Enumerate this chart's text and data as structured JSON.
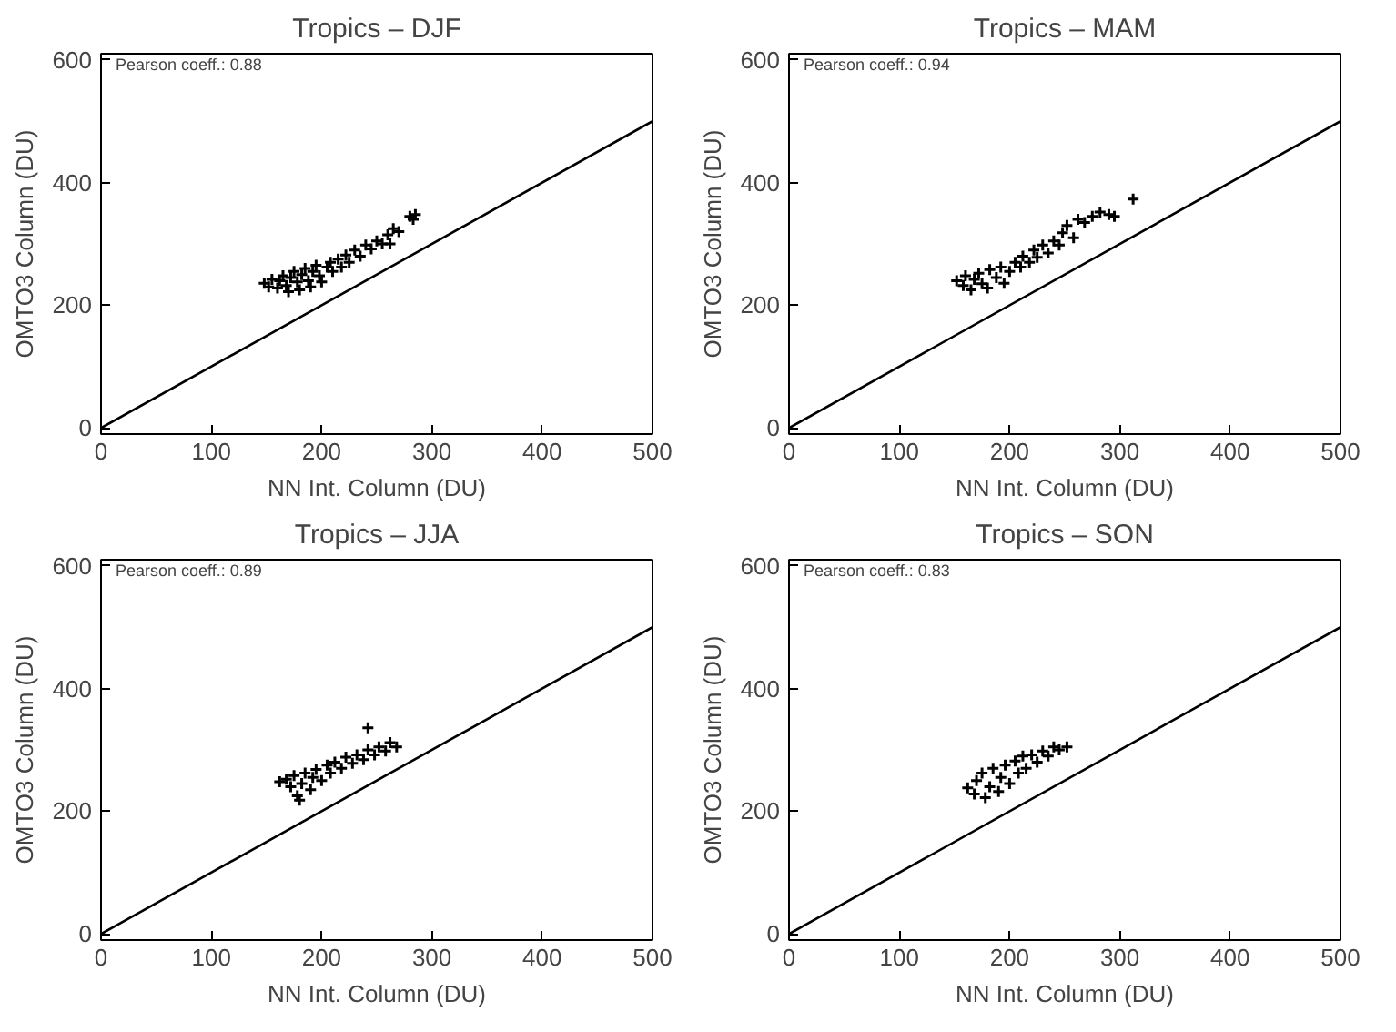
{
  "chart_data": [
    {
      "type": "scatter",
      "title": "Tropics – DJF",
      "xlabel": "NN Int. Column (DU)",
      "ylabel": "OMTO3 Column (DU)",
      "xlim": [
        0,
        500
      ],
      "ylim": [
        -10,
        610
      ],
      "xticks": [
        0,
        100,
        200,
        300,
        400,
        500
      ],
      "yticks": [
        0,
        200,
        400,
        600
      ],
      "marker": "cross",
      "grid": false,
      "annotations": [
        "Pearson coeff.: 0.88"
      ],
      "series": [
        {
          "color": "#000000",
          "x": [
            148,
            152,
            155,
            160,
            162,
            165,
            168,
            170,
            172,
            175,
            178,
            180,
            182,
            185,
            188,
            190,
            192,
            195,
            198,
            200,
            205,
            208,
            210,
            215,
            218,
            222,
            225,
            230,
            235,
            240,
            245,
            250,
            255,
            260,
            265,
            262,
            270,
            280,
            283,
            285
          ],
          "values": [
            236,
            230,
            242,
            228,
            240,
            248,
            232,
            222,
            245,
            255,
            238,
            225,
            250,
            260,
            240,
            230,
            255,
            265,
            248,
            238,
            262,
            270,
            255,
            275,
            262,
            282,
            270,
            290,
            280,
            298,
            292,
            305,
            300,
            315,
            325,
            300,
            320,
            345,
            340,
            348
          ]
        },
        {
          "type": "line",
          "color": "#000000",
          "marker": "none",
          "x": [
            0,
            500
          ],
          "values": [
            0,
            500
          ]
        }
      ]
    },
    {
      "type": "scatter",
      "title": "Tropics – MAM",
      "xlabel": "NN Int. Column (DU)",
      "ylabel": "OMTO3 Column (DU)",
      "xlim": [
        0,
        500
      ],
      "ylim": [
        -10,
        610
      ],
      "xticks": [
        0,
        100,
        200,
        300,
        400,
        500
      ],
      "yticks": [
        0,
        200,
        400,
        600
      ],
      "marker": "cross",
      "grid": false,
      "annotations": [
        "Pearson coeff.: 0.94"
      ],
      "series": [
        {
          "color": "#000000",
          "x": [
            152,
            158,
            160,
            165,
            168,
            172,
            175,
            180,
            182,
            188,
            192,
            195,
            200,
            205,
            210,
            212,
            218,
            222,
            225,
            230,
            235,
            240,
            245,
            248,
            252,
            258,
            262,
            268,
            275,
            282,
            290,
            295,
            312
          ],
          "values": [
            240,
            232,
            248,
            225,
            242,
            252,
            235,
            228,
            258,
            245,
            262,
            236,
            255,
            270,
            262,
            280,
            270,
            290,
            278,
            298,
            285,
            305,
            298,
            318,
            330,
            310,
            340,
            335,
            345,
            352,
            348,
            345,
            373
          ]
        },
        {
          "type": "line",
          "color": "#000000",
          "marker": "none",
          "x": [
            0,
            500
          ],
          "values": [
            0,
            500
          ]
        }
      ]
    },
    {
      "type": "scatter",
      "title": "Tropics – JJA",
      "xlabel": "NN Int. Column (DU)",
      "ylabel": "OMTO3 Column (DU)",
      "xlim": [
        0,
        500
      ],
      "ylim": [
        -10,
        610
      ],
      "xticks": [
        0,
        100,
        200,
        300,
        400,
        500
      ],
      "yticks": [
        0,
        200,
        400,
        600
      ],
      "marker": "cross",
      "grid": false,
      "annotations": [
        "Pearson coeff.: 0.89"
      ],
      "series": [
        {
          "color": "#000000",
          "x": [
            162,
            168,
            172,
            175,
            178,
            180,
            182,
            185,
            190,
            192,
            195,
            200,
            205,
            208,
            212,
            218,
            222,
            228,
            232,
            238,
            242,
            248,
            252,
            258,
            262,
            268,
            242
          ],
          "values": [
            248,
            252,
            240,
            258,
            225,
            218,
            245,
            262,
            235,
            255,
            268,
            250,
            275,
            262,
            280,
            270,
            288,
            278,
            292,
            284,
            300,
            292,
            305,
            298,
            312,
            305,
            336
          ]
        },
        {
          "type": "line",
          "color": "#000000",
          "marker": "none",
          "x": [
            0,
            500
          ],
          "values": [
            0,
            500
          ]
        }
      ]
    },
    {
      "type": "scatter",
      "title": "Tropics – SON",
      "xlabel": "NN Int. Column (DU)",
      "ylabel": "OMTO3 Column (DU)",
      "xlim": [
        0,
        500
      ],
      "ylim": [
        -10,
        610
      ],
      "xticks": [
        0,
        100,
        200,
        300,
        400,
        500
      ],
      "yticks": [
        0,
        200,
        400,
        600
      ],
      "marker": "cross",
      "grid": false,
      "annotations": [
        "Pearson coeff.: 0.83"
      ],
      "series": [
        {
          "color": "#000000",
          "x": [
            162,
            168,
            170,
            175,
            178,
            182,
            185,
            190,
            192,
            196,
            200,
            205,
            208,
            212,
            215,
            220,
            225,
            230,
            235,
            240,
            245,
            252
          ],
          "values": [
            238,
            228,
            250,
            262,
            222,
            240,
            270,
            232,
            255,
            275,
            245,
            282,
            262,
            290,
            270,
            292,
            280,
            298,
            290,
            305,
            300,
            305
          ]
        },
        {
          "type": "line",
          "color": "#000000",
          "marker": "none",
          "x": [
            0,
            500
          ],
          "values": [
            0,
            500
          ]
        }
      ]
    }
  ]
}
